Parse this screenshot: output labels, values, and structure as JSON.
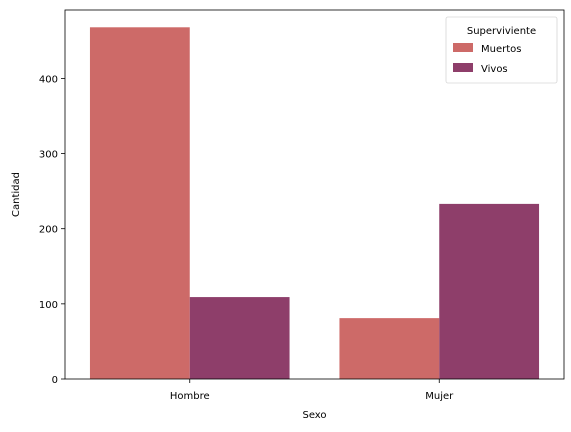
{
  "chart_data": {
    "type": "bar",
    "categories": [
      "Hombre",
      "Mujer"
    ],
    "series": [
      {
        "name": "Muertos",
        "values": [
          468,
          81
        ],
        "color": "#cd6a68"
      },
      {
        "name": "Vivos",
        "values": [
          109,
          233
        ],
        "color": "#8e3e6a"
      }
    ],
    "xlabel": "Sexo",
    "ylabel": "Cantidad",
    "ylim": [
      0,
      491
    ],
    "yticks": [
      0,
      100,
      200,
      300,
      400
    ],
    "legend": {
      "title": "Superviviente",
      "placement": "top-right"
    },
    "grid": false
  }
}
